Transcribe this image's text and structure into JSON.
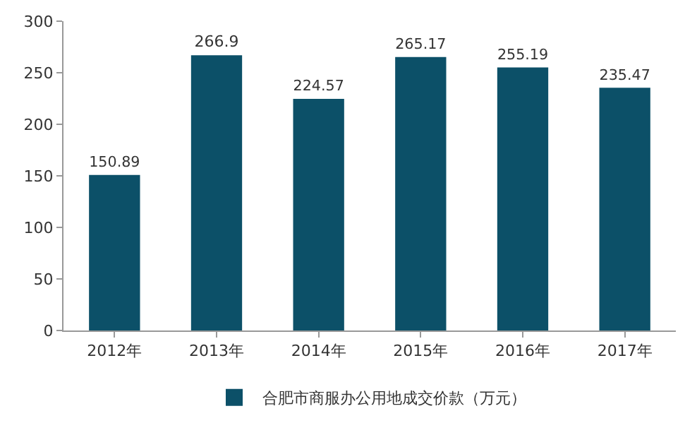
{
  "chart_data": {
    "type": "bar",
    "categories": [
      "2012年",
      "2013年",
      "2014年",
      "2015年",
      "2016年",
      "2017年"
    ],
    "series": [
      {
        "name": "合肥市商服办公用地成交价款（万元）",
        "color": "#0c5068",
        "values": [
          150.89,
          266.9,
          224.57,
          265.17,
          255.19,
          235.47
        ]
      }
    ],
    "ylim": [
      0,
      300
    ],
    "yticks": [
      0,
      50,
      100,
      150,
      200,
      250,
      300
    ],
    "grid": false,
    "legend": "bottom",
    "data_labels": true
  }
}
